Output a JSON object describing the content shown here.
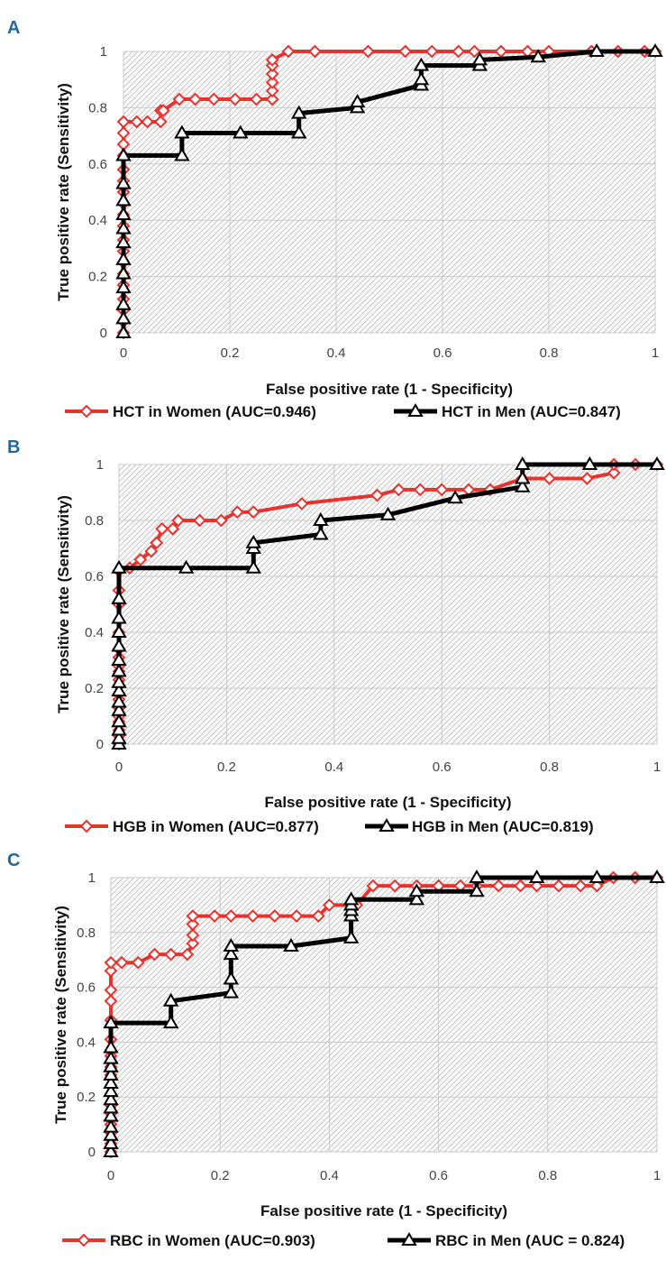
{
  "colors": {
    "women": "#e8322d",
    "men": "#000000",
    "panel_letter": "#1f6a9a",
    "grid": "#c8c8c8",
    "hatch": "#bdbdbd"
  },
  "chart_data": [
    {
      "panel": "A",
      "type": "line",
      "xlabel": "False positive rate (1 - Specificity)",
      "ylabel": "True positive rate (Sensitivity)",
      "xlim": [
        0,
        1
      ],
      "ylim": [
        0,
        1
      ],
      "xticks": [
        "0",
        "0.2",
        "0.4",
        "0.6",
        "0.8",
        "1"
      ],
      "yticks": [
        "0",
        "0.2",
        "0.4",
        "0.6",
        "0.8",
        "1"
      ],
      "grid": true,
      "legend": "bottom",
      "series": [
        {
          "name": "HCT in Women (AUC=0.946)",
          "marker": "diamond",
          "x": [
            0,
            0,
            0,
            0,
            0,
            0,
            0,
            0,
            0,
            0,
            0,
            0,
            0,
            0,
            0,
            0,
            0,
            0,
            0,
            0.025,
            0.045,
            0.07,
            0.07,
            0.075,
            0.105,
            0.135,
            0.17,
            0.21,
            0.25,
            0.28,
            0.28,
            0.28,
            0.28,
            0.28,
            0.28,
            0.31,
            0.36,
            0.46,
            0.53,
            0.58,
            0.63,
            0.66,
            0.71,
            0.76,
            0.8,
            0.88,
            0.93,
            0.98,
            1
          ],
          "y": [
            0,
            0.04,
            0.08,
            0.12,
            0.17,
            0.21,
            0.25,
            0.29,
            0.33,
            0.38,
            0.42,
            0.46,
            0.5,
            0.54,
            0.58,
            0.63,
            0.67,
            0.71,
            0.75,
            0.75,
            0.75,
            0.75,
            0.79,
            0.79,
            0.83,
            0.83,
            0.83,
            0.83,
            0.83,
            0.83,
            0.86,
            0.89,
            0.92,
            0.95,
            0.97,
            1,
            1,
            1,
            1,
            1,
            1,
            1,
            1,
            1,
            1,
            1,
            1,
            1,
            1
          ]
        },
        {
          "name": "HCT in Men (AUC=0.847)",
          "marker": "triangle",
          "x": [
            0,
            0,
            0,
            0,
            0,
            0,
            0,
            0,
            0,
            0,
            0,
            0,
            0.11,
            0.11,
            0.22,
            0.33,
            0.33,
            0.44,
            0.44,
            0.56,
            0.56,
            0.56,
            0.67,
            0.67,
            0.78,
            0.89,
            1
          ],
          "y": [
            0,
            0.05,
            0.1,
            0.16,
            0.21,
            0.26,
            0.32,
            0.37,
            0.42,
            0.47,
            0.53,
            0.63,
            0.63,
            0.71,
            0.71,
            0.71,
            0.78,
            0.8,
            0.82,
            0.88,
            0.9,
            0.95,
            0.95,
            0.97,
            0.98,
            1,
            1
          ]
        }
      ]
    },
    {
      "panel": "B",
      "type": "line",
      "xlabel": "False positive rate (1 - Specificity)",
      "ylabel": "True positive rate (Sensitivity)",
      "xlim": [
        0,
        1
      ],
      "ylim": [
        0,
        1
      ],
      "xticks": [
        "0",
        "0.2",
        "0.4",
        "0.6",
        "0.8",
        "1"
      ],
      "yticks": [
        "0",
        "0.2",
        "0.4",
        "0.6",
        "0.8",
        "1"
      ],
      "grid": true,
      "legend": "bottom",
      "series": [
        {
          "name": "HGB in Women (AUC=0.877)",
          "marker": "diamond",
          "x": [
            0,
            0,
            0,
            0,
            0,
            0,
            0,
            0,
            0,
            0,
            0,
            0,
            0,
            0,
            0,
            0,
            0,
            0,
            0.02,
            0.04,
            0.06,
            0.07,
            0.08,
            0.1,
            0.11,
            0.15,
            0.19,
            0.22,
            0.25,
            0.34,
            0.48,
            0.52,
            0.56,
            0.6,
            0.65,
            0.69,
            0.75,
            0.8,
            0.87,
            0.92,
            0.92,
            0.96,
            1
          ],
          "y": [
            0,
            0.03,
            0.05,
            0.08,
            0.1,
            0.13,
            0.16,
            0.18,
            0.21,
            0.23,
            0.26,
            0.28,
            0.31,
            0.34,
            0.4,
            0.5,
            0.55,
            0.62,
            0.63,
            0.66,
            0.69,
            0.72,
            0.77,
            0.77,
            0.8,
            0.8,
            0.8,
            0.83,
            0.83,
            0.86,
            0.89,
            0.91,
            0.91,
            0.91,
            0.91,
            0.91,
            0.95,
            0.95,
            0.95,
            0.97,
            1,
            1,
            1
          ]
        },
        {
          "name": "HGB in Men (AUC=0.819)",
          "marker": "triangle",
          "x": [
            0,
            0,
            0,
            0,
            0,
            0,
            0,
            0,
            0,
            0,
            0,
            0,
            0,
            0,
            0,
            0.125,
            0.25,
            0.25,
            0.25,
            0.375,
            0.375,
            0.5,
            0.625,
            0.75,
            0.75,
            0.75,
            0.875,
            1
          ],
          "y": [
            0,
            0.02,
            0.05,
            0.08,
            0.12,
            0.15,
            0.19,
            0.22,
            0.26,
            0.3,
            0.35,
            0.4,
            0.45,
            0.52,
            0.63,
            0.63,
            0.63,
            0.7,
            0.72,
            0.75,
            0.8,
            0.82,
            0.88,
            0.92,
            0.95,
            1,
            1,
            1
          ]
        }
      ]
    },
    {
      "panel": "C",
      "type": "line",
      "xlabel": "False positive rate (1 - Specificity)",
      "ylabel": "True positive rate (Sensitivity)",
      "xlim": [
        0,
        1
      ],
      "ylim": [
        0,
        1
      ],
      "xticks": [
        "0",
        "0.2",
        "0.4",
        "0.6",
        "0.8",
        "1"
      ],
      "yticks": [
        "0",
        "0.2",
        "0.4",
        "0.6",
        "0.8",
        "1"
      ],
      "grid": true,
      "legend": "bottom",
      "series": [
        {
          "name": "RBC in Women (AUC=0.903)",
          "marker": "diamond",
          "x": [
            0,
            0,
            0,
            0,
            0,
            0,
            0,
            0,
            0,
            0,
            0,
            0,
            0,
            0,
            0,
            0,
            0,
            0.02,
            0.05,
            0.08,
            0.11,
            0.14,
            0.15,
            0.15,
            0.15,
            0.15,
            0.19,
            0.22,
            0.26,
            0.3,
            0.34,
            0.38,
            0.4,
            0.45,
            0.48,
            0.52,
            0.56,
            0.6,
            0.64,
            0.67,
            0.71,
            0.75,
            0.78,
            0.82,
            0.86,
            0.89,
            0.92,
            0.96,
            1
          ],
          "y": [
            0,
            0.03,
            0.07,
            0.1,
            0.14,
            0.17,
            0.21,
            0.24,
            0.28,
            0.31,
            0.35,
            0.41,
            0.48,
            0.55,
            0.59,
            0.66,
            0.69,
            0.69,
            0.69,
            0.72,
            0.72,
            0.72,
            0.76,
            0.79,
            0.83,
            0.86,
            0.86,
            0.86,
            0.86,
            0.86,
            0.86,
            0.86,
            0.9,
            0.9,
            0.97,
            0.97,
            0.97,
            0.97,
            0.97,
            0.97,
            0.97,
            0.97,
            0.97,
            0.97,
            0.97,
            0.97,
            1,
            1,
            1
          ]
        },
        {
          "name": "RBC in Men (AUC = 0.824)",
          "marker": "triangle",
          "x": [
            0,
            0,
            0,
            0,
            0,
            0,
            0,
            0,
            0,
            0,
            0,
            0,
            0,
            0,
            0.11,
            0.11,
            0.22,
            0.22,
            0.22,
            0.22,
            0.33,
            0.44,
            0.44,
            0.44,
            0.44,
            0.44,
            0.56,
            0.56,
            0.67,
            0.67,
            0.78,
            0.89,
            1
          ],
          "y": [
            0,
            0.03,
            0.06,
            0.09,
            0.13,
            0.16,
            0.19,
            0.22,
            0.25,
            0.28,
            0.31,
            0.34,
            0.38,
            0.47,
            0.47,
            0.55,
            0.58,
            0.63,
            0.72,
            0.75,
            0.75,
            0.78,
            0.86,
            0.88,
            0.9,
            0.92,
            0.92,
            0.95,
            0.95,
            1,
            1,
            1,
            1
          ]
        }
      ]
    }
  ]
}
